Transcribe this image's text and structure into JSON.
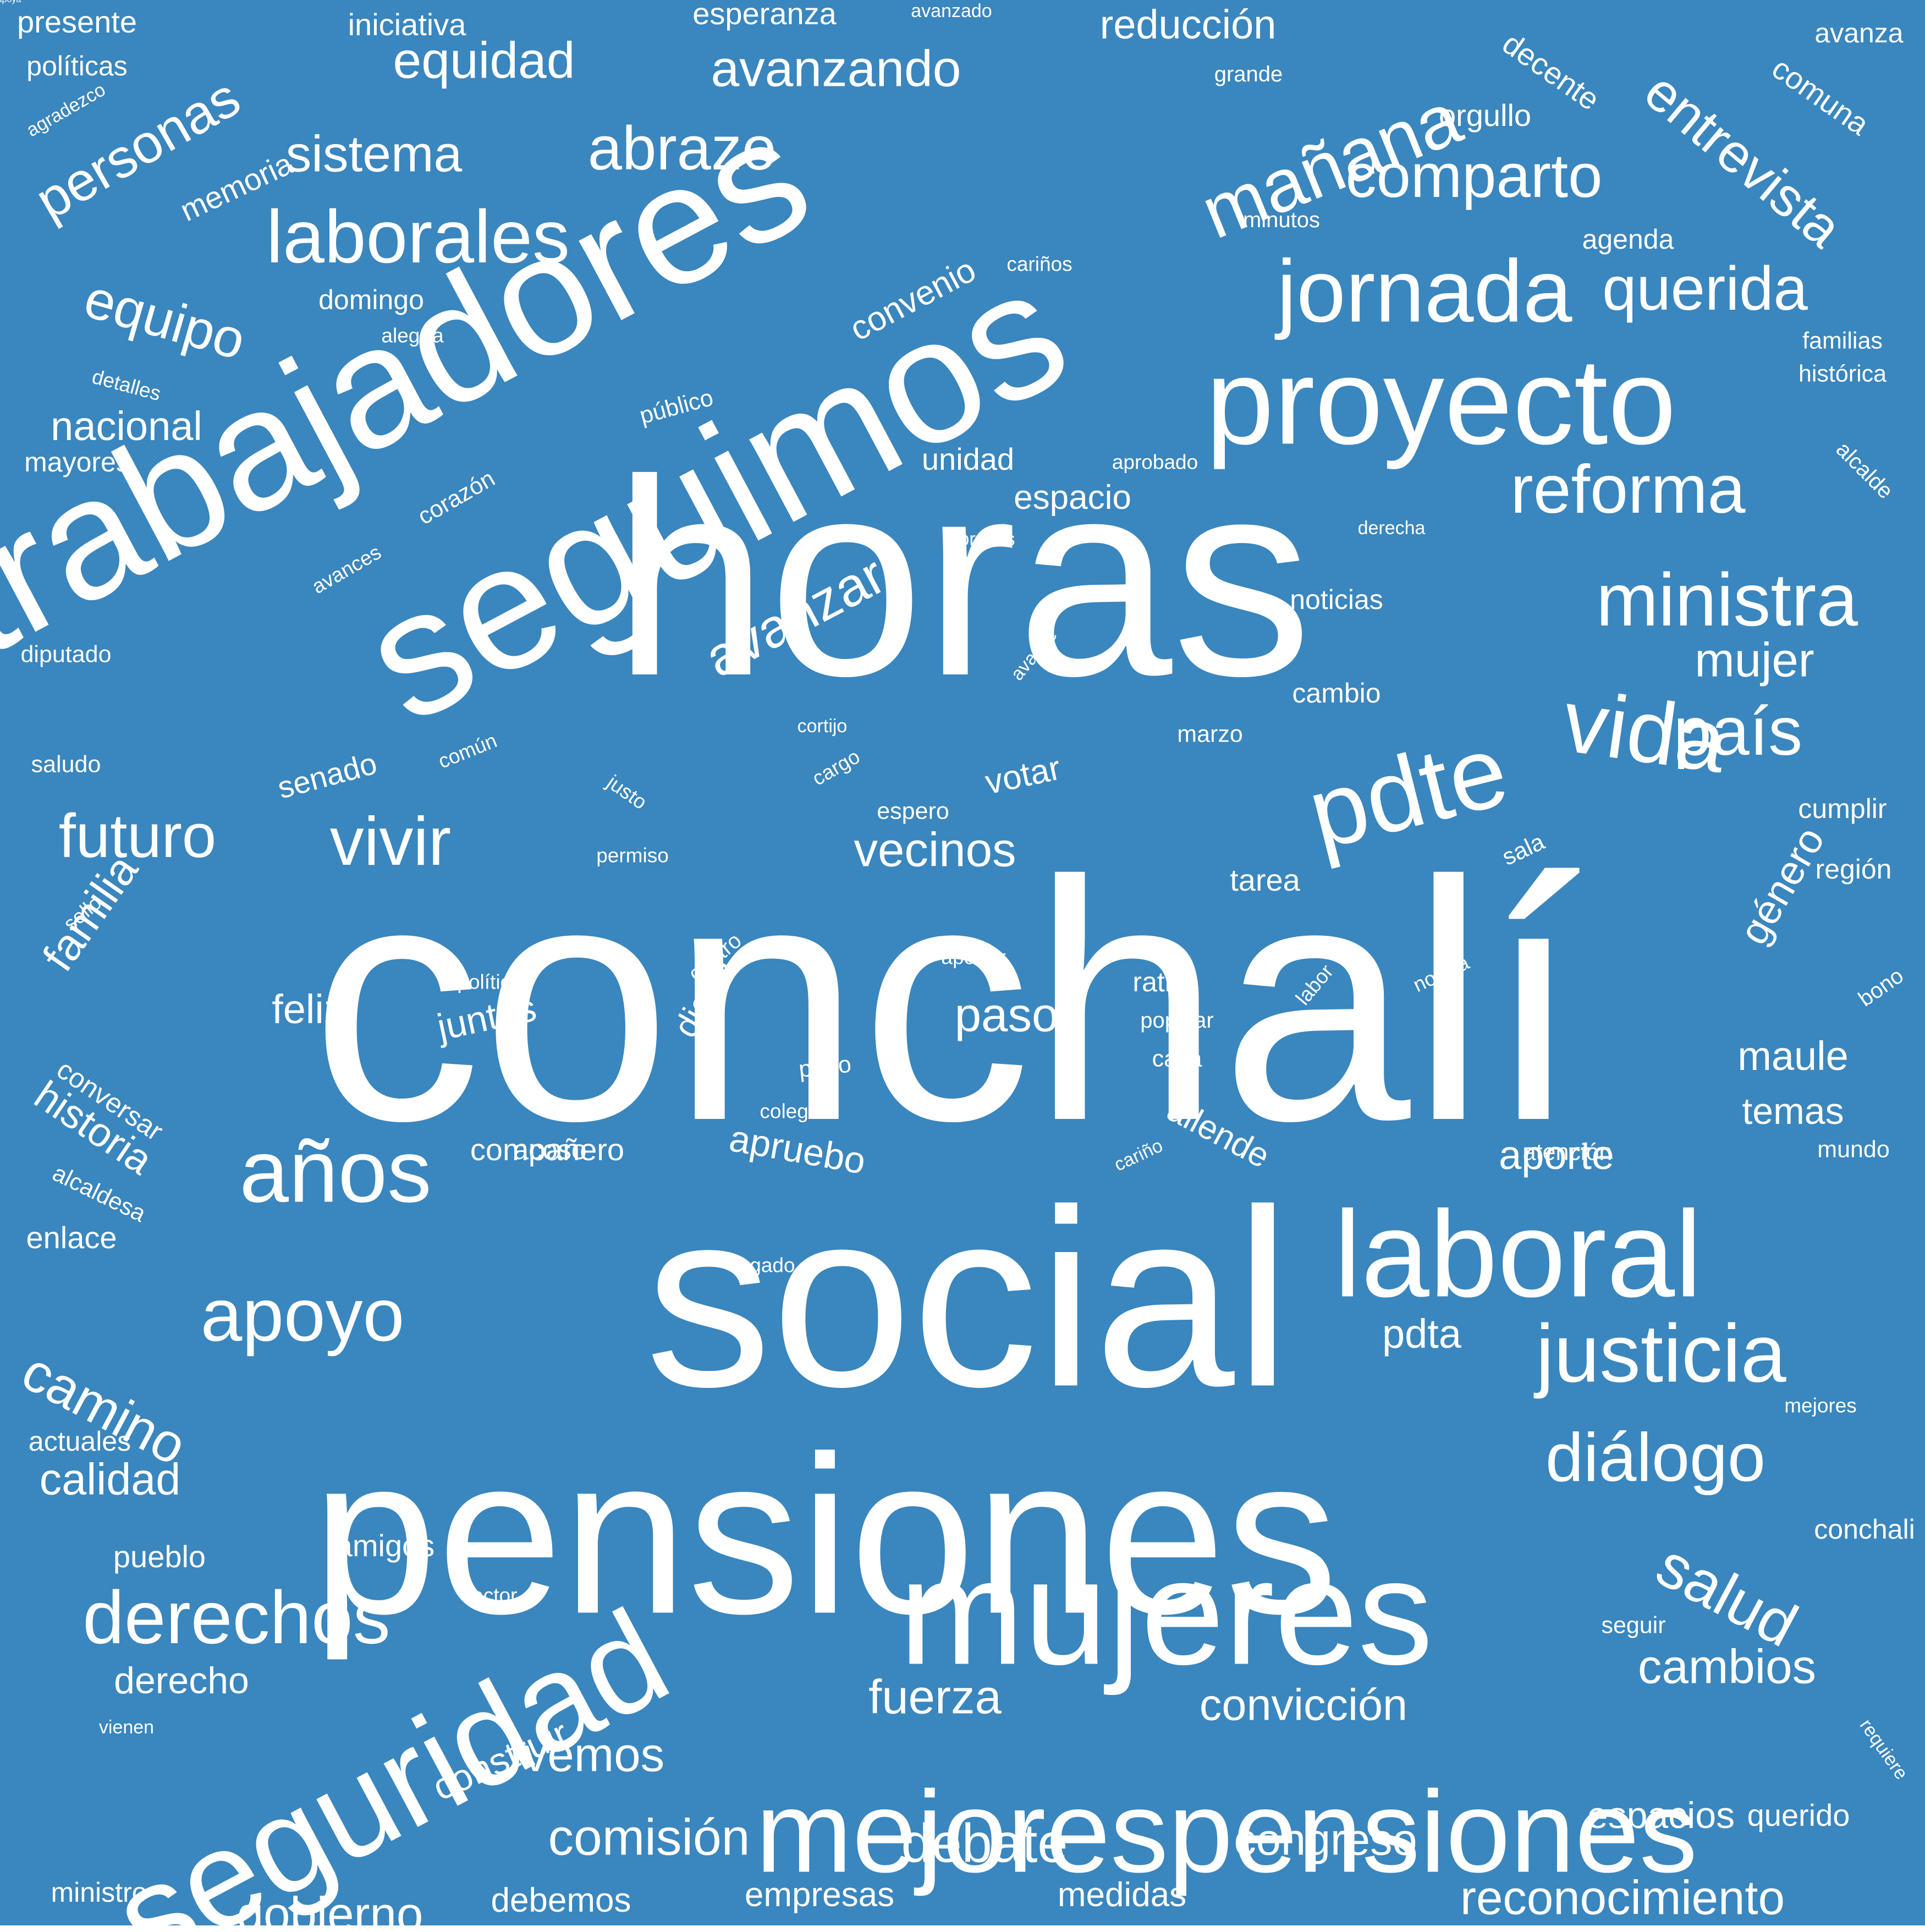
{
  "colors": {
    "background": "#3a86be",
    "text": "#ffffff"
  },
  "words": [
    {
      "text": "conchalí",
      "size": 1.0
    },
    {
      "text": "horas",
      "size": 0.82
    },
    {
      "text": "social",
      "size": 0.74
    },
    {
      "text": "pensiones",
      "size": 0.66
    },
    {
      "text": "seguimos",
      "size": 0.52
    },
    {
      "text": "trabajadores",
      "size": 0.5
    },
    {
      "text": "mujeres",
      "size": 0.44
    },
    {
      "text": "seguridad",
      "size": 0.4
    },
    {
      "text": "laboral",
      "size": 0.36
    },
    {
      "text": "proyecto",
      "size": 0.36
    },
    {
      "text": "mejorespensiones",
      "size": 0.34
    },
    {
      "text": "pdte",
      "size": 0.3
    },
    {
      "text": "jornada",
      "size": 0.26
    },
    {
      "text": "vida",
      "size": 0.26
    },
    {
      "text": "años",
      "size": 0.26
    },
    {
      "text": "justicia",
      "size": 0.24
    },
    {
      "text": "laborales",
      "size": 0.22
    },
    {
      "text": "ministra",
      "size": 0.22
    },
    {
      "text": "mañana",
      "size": 0.22
    },
    {
      "text": "apoyo",
      "size": 0.22
    },
    {
      "text": "derechos",
      "size": 0.22
    },
    {
      "text": "reforma",
      "size": 0.2
    },
    {
      "text": "país",
      "size": 0.2
    },
    {
      "text": "diálogo",
      "size": 0.2
    },
    {
      "text": "vivir",
      "size": 0.2
    },
    {
      "text": "futuro",
      "size": 0.18
    },
    {
      "text": "comparto",
      "size": 0.18
    },
    {
      "text": "querida",
      "size": 0.18
    },
    {
      "text": "abrazo",
      "size": 0.18
    },
    {
      "text": "salud",
      "size": 0.18
    },
    {
      "text": "avanzar",
      "size": 0.16
    },
    {
      "text": "equipo",
      "size": 0.16
    },
    {
      "text": "camino",
      "size": 0.16
    },
    {
      "text": "entrevista",
      "size": 0.16
    },
    {
      "text": "personas",
      "size": 0.16
    },
    {
      "text": "sistema",
      "size": 0.15
    },
    {
      "text": "equidad",
      "size": 0.15
    },
    {
      "text": "avanzando",
      "size": 0.15
    },
    {
      "text": "debate",
      "size": 0.16
    },
    {
      "text": "comisión",
      "size": 0.15
    },
    {
      "text": "cambios",
      "size": 0.14
    },
    {
      "text": "reconocimiento",
      "size": 0.14
    },
    {
      "text": "gobierno",
      "size": 0.14
    },
    {
      "text": "mujer",
      "size": 0.14
    },
    {
      "text": "vecinos",
      "size": 0.14
    },
    {
      "text": "paso",
      "size": 0.14
    },
    {
      "text": "fuerza",
      "size": 0.14
    },
    {
      "text": "vemos",
      "size": 0.14
    },
    {
      "text": "calidad",
      "size": 0.13
    },
    {
      "text": "familia",
      "size": 0.13
    },
    {
      "text": "historia",
      "size": 0.12
    },
    {
      "text": "congreso",
      "size": 0.13
    },
    {
      "text": "convicción",
      "size": 0.13
    },
    {
      "text": "construir",
      "size": 0.11
    },
    {
      "text": "género",
      "size": 0.12
    },
    {
      "text": "maule",
      "size": 0.12
    },
    {
      "text": "nacional",
      "size": 0.12
    },
    {
      "text": "feliz",
      "size": 0.12
    },
    {
      "text": "reducción",
      "size": 0.12
    },
    {
      "text": "aporte",
      "size": 0.12
    },
    {
      "text": "pdta",
      "size": 0.12
    },
    {
      "text": "derecho",
      "size": 0.11
    },
    {
      "text": "espacios",
      "size": 0.11
    },
    {
      "text": "temas",
      "size": 0.11
    },
    {
      "text": "juntas",
      "size": 0.11
    },
    {
      "text": "diario",
      "size": 0.1
    },
    {
      "text": "apruebo",
      "size": 0.11
    },
    {
      "text": "empresas",
      "size": 0.1
    },
    {
      "text": "medidas",
      "size": 0.1
    },
    {
      "text": "debemos",
      "size": 0.1
    },
    {
      "text": "votar",
      "size": 0.1
    },
    {
      "text": "allende",
      "size": 0.1
    },
    {
      "text": "espacio",
      "size": 0.1
    },
    {
      "text": "unidad",
      "size": 0.09
    },
    {
      "text": "convenio",
      "size": 0.1
    },
    {
      "text": "memoria",
      "size": 0.09
    },
    {
      "text": "decente",
      "size": 0.09
    },
    {
      "text": "comuna",
      "size": 0.09
    },
    {
      "text": "senado",
      "size": 0.09
    },
    {
      "text": "compañero",
      "size": 0.09
    },
    {
      "text": "amigos",
      "size": 0.09
    },
    {
      "text": "querido",
      "size": 0.09
    },
    {
      "text": "orgullo",
      "size": 0.09
    },
    {
      "text": "esperanza",
      "size": 0.09
    },
    {
      "text": "iniciativa",
      "size": 0.09
    },
    {
      "text": "noticias",
      "size": 0.08
    },
    {
      "text": "cambio",
      "size": 0.08
    },
    {
      "text": "tarea",
      "size": 0.09
    },
    {
      "text": "cumplir",
      "size": 0.08
    },
    {
      "text": "región",
      "size": 0.08
    },
    {
      "text": "ratito",
      "size": 0.08
    },
    {
      "text": "pueblo",
      "size": 0.09
    },
    {
      "text": "enlace",
      "size": 0.09
    },
    {
      "text": "mayores",
      "size": 0.08
    },
    {
      "text": "domingo",
      "size": 0.08
    },
    {
      "text": "presente",
      "size": 0.09
    },
    {
      "text": "políticas",
      "size": 0.08
    },
    {
      "text": "agenda",
      "size": 0.08
    },
    {
      "text": "conchali",
      "size": 0.08
    },
    {
      "text": "actuales",
      "size": 0.08
    },
    {
      "text": "conversar",
      "size": 0.08
    },
    {
      "text": "avanza",
      "size": 0.08
    },
    {
      "text": "ministro",
      "size": 0.08
    },
    {
      "text": "corazón",
      "size": 0.07
    },
    {
      "text": "marzo",
      "size": 0.07
    },
    {
      "text": "mundo",
      "size": 0.07
    },
    {
      "text": "pago",
      "size": 0.07
    },
    {
      "text": "acoso",
      "size": 0.08
    },
    {
      "text": "familias",
      "size": 0.07
    },
    {
      "text": "histórica",
      "size": 0.07
    },
    {
      "text": "diputado",
      "size": 0.07
    },
    {
      "text": "saludo",
      "size": 0.07
    },
    {
      "text": "seguir",
      "size": 0.07
    },
    {
      "text": "atención",
      "size": 0.07
    },
    {
      "text": "alcalde",
      "size": 0.065
    },
    {
      "text": "alcaldesa",
      "size": 0.07
    },
    {
      "text": "público",
      "size": 0.07
    },
    {
      "text": "popular",
      "size": 0.065
    },
    {
      "text": "casa",
      "size": 0.07
    },
    {
      "text": "centro",
      "size": 0.065
    },
    {
      "text": "sala",
      "size": 0.07
    },
    {
      "text": "espero",
      "size": 0.07
    },
    {
      "text": "bono",
      "size": 0.065
    },
    {
      "text": "grande",
      "size": 0.065
    },
    {
      "text": "minutos",
      "size": 0.065
    },
    {
      "text": "cariños",
      "size": 0.06
    },
    {
      "text": "alegría",
      "size": 0.06
    },
    {
      "text": "detalles",
      "size": 0.06
    },
    {
      "text": "avances",
      "size": 0.06
    },
    {
      "text": "aprobado",
      "size": 0.06
    },
    {
      "text": "derecha",
      "size": 0.055
    },
    {
      "text": "abrazos",
      "size": 0.055
    },
    {
      "text": "avance",
      "size": 0.055
    },
    {
      "text": "cortijo",
      "size": 0.055
    },
    {
      "text": "cargo",
      "size": 0.06
    },
    {
      "text": "justo",
      "size": 0.06
    },
    {
      "text": "común",
      "size": 0.06
    },
    {
      "text": "permiso",
      "size": 0.06
    },
    {
      "text": "sello",
      "size": 0.06
    },
    {
      "text": "política",
      "size": 0.06
    },
    {
      "text": "aportar",
      "size": 0.06
    },
    {
      "text": "labor",
      "size": 0.06
    },
    {
      "text": "noticia",
      "size": 0.06
    },
    {
      "text": "colegio",
      "size": 0.06
    },
    {
      "text": "cariño",
      "size": 0.055
    },
    {
      "text": "legado",
      "size": 0.06
    },
    {
      "text": "sector",
      "size": 0.06
    },
    {
      "text": "vienen",
      "size": 0.055
    },
    {
      "text": "requiere",
      "size": 0.055
    },
    {
      "text": "mejores",
      "size": 0.06
    },
    {
      "text": "agradezco",
      "size": 0.055
    },
    {
      "text": "avanzado",
      "size": 0.055
    },
    {
      "text": "chileapoya",
      "size": 0.055
    }
  ]
}
